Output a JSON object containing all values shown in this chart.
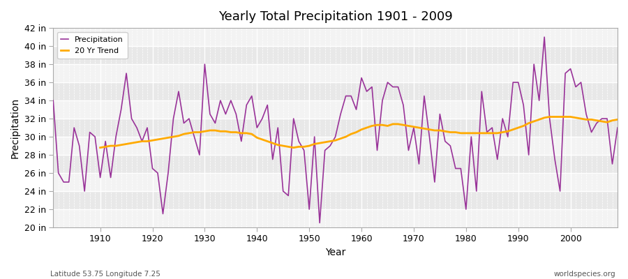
{
  "title": "Yearly Total Precipitation 1901 - 2009",
  "xlabel": "Year",
  "ylabel": "Precipitation",
  "background_color": "#ffffff",
  "plot_bg_color": "#e8e8e8",
  "precip_color": "#993399",
  "trend_color": "#ffaa00",
  "ylim": [
    20,
    42
  ],
  "yticks": [
    20,
    22,
    24,
    26,
    28,
    30,
    32,
    34,
    36,
    38,
    40,
    42
  ],
  "ytick_labels": [
    "20 in",
    "22 in",
    "24 in",
    "26 in",
    "28 in",
    "30 in",
    "32 in",
    "34 in",
    "36 in",
    "38 in",
    "40 in",
    "42 in"
  ],
  "xlim": [
    1901,
    2009
  ],
  "xticks": [
    1910,
    1920,
    1930,
    1940,
    1950,
    1960,
    1970,
    1980,
    1990,
    2000
  ],
  "footnote_left": "Latitude 53.75 Longitude 7.25",
  "footnote_right": "worldspecies.org",
  "legend_labels": [
    "Precipitation",
    "20 Yr Trend"
  ],
  "years": [
    1901,
    1902,
    1903,
    1904,
    1905,
    1906,
    1907,
    1908,
    1909,
    1910,
    1911,
    1912,
    1913,
    1914,
    1915,
    1916,
    1917,
    1918,
    1919,
    1920,
    1921,
    1922,
    1923,
    1924,
    1925,
    1926,
    1927,
    1928,
    1929,
    1930,
    1931,
    1932,
    1933,
    1934,
    1935,
    1936,
    1937,
    1938,
    1939,
    1940,
    1941,
    1942,
    1943,
    1944,
    1945,
    1946,
    1947,
    1948,
    1949,
    1950,
    1951,
    1952,
    1953,
    1954,
    1955,
    1956,
    1957,
    1958,
    1959,
    1960,
    1961,
    1962,
    1963,
    1964,
    1965,
    1966,
    1967,
    1968,
    1969,
    1970,
    1971,
    1972,
    1973,
    1974,
    1975,
    1976,
    1977,
    1978,
    1979,
    1980,
    1981,
    1982,
    1983,
    1984,
    1985,
    1986,
    1987,
    1988,
    1989,
    1990,
    1991,
    1992,
    1993,
    1994,
    1995,
    1996,
    1997,
    1998,
    1999,
    2000,
    2001,
    2002,
    2003,
    2004,
    2005,
    2006,
    2007,
    2008,
    2009
  ],
  "precip": [
    34.0,
    26.0,
    25.0,
    25.0,
    31.0,
    29.0,
    24.0,
    30.5,
    30.0,
    25.5,
    29.5,
    25.5,
    30.0,
    33.0,
    37.0,
    32.0,
    31.0,
    29.5,
    31.0,
    26.5,
    26.0,
    21.5,
    26.0,
    32.0,
    35.0,
    31.5,
    32.0,
    30.0,
    28.0,
    38.0,
    32.5,
    31.5,
    34.0,
    32.5,
    34.0,
    32.5,
    29.5,
    33.5,
    34.5,
    31.0,
    32.0,
    33.5,
    27.5,
    31.0,
    24.0,
    23.5,
    32.0,
    29.5,
    28.5,
    22.0,
    30.0,
    20.5,
    28.5,
    29.0,
    30.0,
    32.5,
    34.5,
    34.5,
    33.0,
    36.5,
    35.0,
    35.5,
    28.5,
    34.0,
    36.0,
    35.5,
    35.5,
    33.5,
    28.5,
    31.0,
    27.0,
    34.5,
    30.0,
    25.0,
    32.5,
    29.5,
    29.0,
    26.5,
    26.5,
    22.0,
    30.0,
    24.0,
    35.0,
    30.5,
    31.0,
    27.5,
    32.0,
    30.0,
    36.0,
    36.0,
    33.5,
    28.0,
    38.0,
    34.0,
    41.0,
    32.0,
    27.5,
    24.0,
    37.0,
    37.5,
    35.5,
    36.0,
    32.5,
    30.5,
    31.5,
    32.0,
    32.0,
    27.0,
    31.0
  ],
  "trend": [
    null,
    null,
    null,
    null,
    null,
    null,
    null,
    null,
    null,
    28.8,
    28.9,
    29.0,
    29.0,
    29.1,
    29.2,
    29.3,
    29.4,
    29.5,
    29.5,
    29.6,
    29.7,
    29.8,
    29.9,
    30.0,
    30.1,
    30.3,
    30.4,
    30.5,
    30.5,
    30.6,
    30.7,
    30.7,
    30.6,
    30.6,
    30.5,
    30.5,
    30.4,
    30.4,
    30.3,
    29.9,
    29.7,
    29.5,
    29.3,
    29.1,
    29.0,
    28.9,
    28.8,
    28.9,
    28.9,
    29.0,
    29.2,
    29.3,
    29.4,
    29.5,
    29.6,
    29.8,
    30.0,
    30.3,
    30.5,
    30.8,
    31.0,
    31.2,
    31.3,
    31.3,
    31.2,
    31.4,
    31.4,
    31.3,
    31.2,
    31.1,
    31.0,
    30.9,
    30.8,
    30.7,
    30.7,
    30.6,
    30.5,
    30.5,
    30.4,
    30.4,
    30.4,
    30.4,
    30.4,
    30.4,
    30.4,
    30.4,
    30.5,
    30.6,
    30.8,
    31.0,
    31.2,
    31.5,
    31.7,
    31.9,
    32.1,
    32.2,
    32.2,
    32.2,
    32.2,
    32.2,
    32.1,
    32.0,
    31.9,
    31.9,
    31.8,
    31.7,
    31.6,
    31.8,
    31.9
  ]
}
